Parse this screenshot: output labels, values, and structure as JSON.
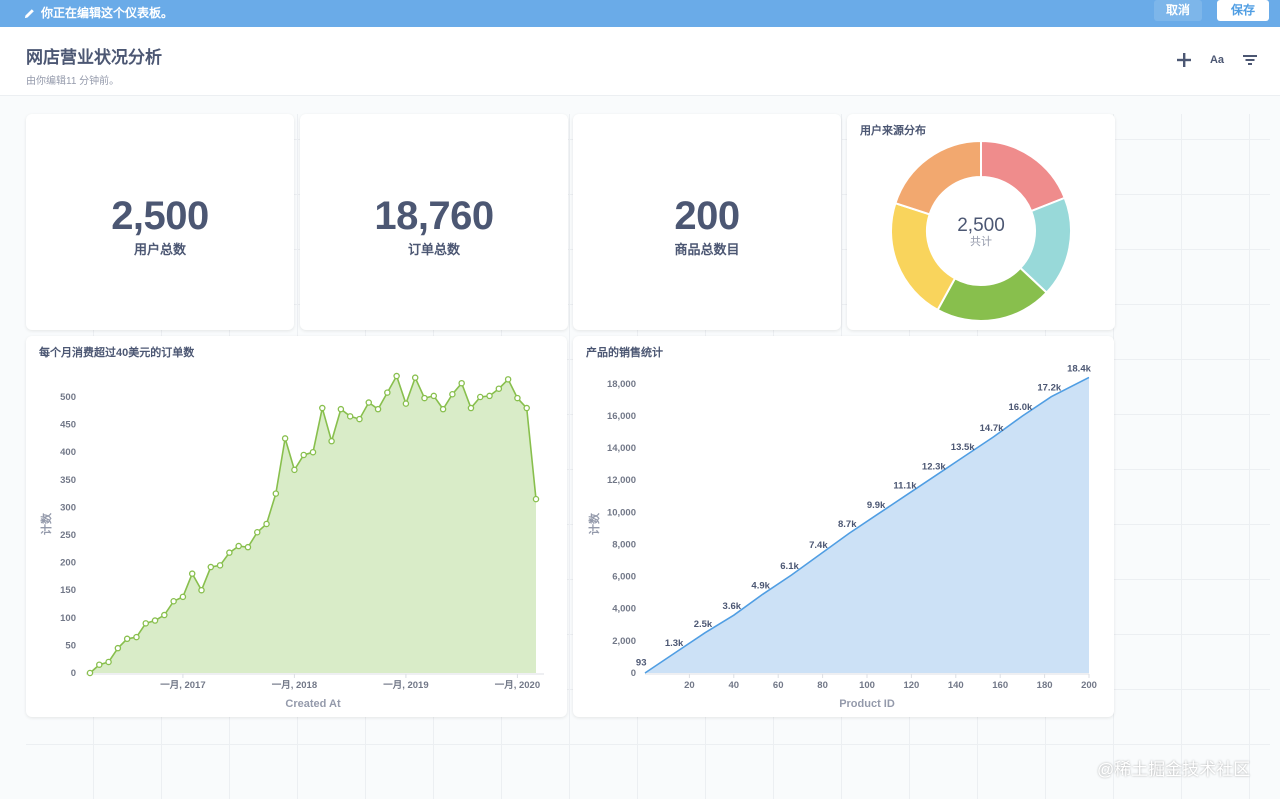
{
  "edit_bar": {
    "message": "你正在编辑这个仪表板。",
    "cancel_label": "取消",
    "save_label": "保存",
    "color": "#6aabe8"
  },
  "header": {
    "title": "网店营业状况分析",
    "subtitle": "由你编辑11 分钟前。",
    "icons": [
      "plus-icon",
      "text-card-icon",
      "filter-icon"
    ],
    "text_card_label": "Aa"
  },
  "scalars": [
    {
      "value": "2,500",
      "label": "用户总数"
    },
    {
      "value": "18,760",
      "label": "订单总数"
    },
    {
      "value": "200",
      "label": "商品总数目"
    }
  ],
  "donut": {
    "title": "用户来源分布",
    "total": "2,500",
    "total_label": "共计",
    "colors": [
      "#ef8c8c",
      "#98d9d9",
      "#88bf4d",
      "#f9d45c",
      "#f2a86f"
    ]
  },
  "line_card": {
    "title": "每个月消费超过40美元的订单数"
  },
  "area_card": {
    "title": "产品的销售统计"
  },
  "chart_data": [
    {
      "type": "pie",
      "values": [
        0.19,
        0.18,
        0.21,
        0.22,
        0.2
      ],
      "colors": [
        "#ef8c8c",
        "#98d9d9",
        "#88bf4d",
        "#f9d45c",
        "#f2a86f"
      ],
      "center_value": "2,500",
      "center_label": "共计",
      "title": "用户来源分布"
    },
    {
      "type": "area",
      "title": "每个月消费超过40美元的订单数",
      "xlabel": "Created At",
      "ylabel": "计数",
      "ylim": [
        0,
        500
      ],
      "yticks": [
        0,
        50,
        100,
        150,
        200,
        250,
        300,
        350,
        400,
        450,
        500
      ],
      "xticks": [
        {
          "index": 10,
          "label": "一月, 2017"
        },
        {
          "index": 22,
          "label": "一月, 2018"
        },
        {
          "index": 34,
          "label": "一月, 2019"
        },
        {
          "index": 46,
          "label": "一月, 2020"
        }
      ],
      "color": "#88bf4d",
      "fill": "#d9ecc8",
      "values": [
        0,
        15,
        20,
        45,
        62,
        65,
        90,
        95,
        105,
        130,
        138,
        180,
        150,
        192,
        195,
        218,
        230,
        228,
        255,
        270,
        325,
        425,
        368,
        395,
        400,
        480,
        420,
        478,
        465,
        460,
        490,
        478,
        508,
        538,
        488,
        535,
        498,
        502,
        478,
        505,
        525,
        480,
        500,
        502,
        515,
        532,
        498,
        480,
        315
      ]
    },
    {
      "type": "area",
      "title": "产品的销售统计",
      "xlabel": "Product ID",
      "ylabel": "计数",
      "xlim": [
        0,
        200
      ],
      "ylim": [
        0,
        18800
      ],
      "xticks": [
        20,
        40,
        60,
        80,
        100,
        120,
        140,
        160,
        180,
        200
      ],
      "yticks": [
        {
          "value": 0,
          "label": "0"
        },
        {
          "value": 2000,
          "label": "2,000"
        },
        {
          "value": 4000,
          "label": "4,000"
        },
        {
          "value": 6000,
          "label": "6,000"
        },
        {
          "value": 8000,
          "label": "8,000"
        },
        {
          "value": 10000,
          "label": "10,000"
        },
        {
          "value": 12000,
          "label": "12,000"
        },
        {
          "value": 14000,
          "label": "14,000"
        },
        {
          "value": 16000,
          "label": "16,000"
        },
        {
          "value": 18000,
          "label": "18,000"
        }
      ],
      "color": "#509ee3",
      "fill": "#cce1f6",
      "points": [
        {
          "x": 1,
          "y": 93,
          "label": "93"
        },
        {
          "x": 14,
          "y": 1300,
          "label": "1.3k"
        },
        {
          "x": 27,
          "y": 2500,
          "label": "2.5k"
        },
        {
          "x": 40,
          "y": 3600,
          "label": "3.6k"
        },
        {
          "x": 53,
          "y": 4900,
          "label": "4.9k"
        },
        {
          "x": 66,
          "y": 6100,
          "label": "6.1k"
        },
        {
          "x": 79,
          "y": 7400,
          "label": "7.4k"
        },
        {
          "x": 92,
          "y": 8700,
          "label": "8.7k"
        },
        {
          "x": 105,
          "y": 9900,
          "label": "9.9k"
        },
        {
          "x": 118,
          "y": 11100,
          "label": "11.1k"
        },
        {
          "x": 131,
          "y": 12300,
          "label": "12.3k"
        },
        {
          "x": 144,
          "y": 13500,
          "label": "13.5k"
        },
        {
          "x": 157,
          "y": 14700,
          "label": "14.7k"
        },
        {
          "x": 170,
          "y": 16000,
          "label": "16.0k"
        },
        {
          "x": 183,
          "y": 17200,
          "label": "17.2k"
        },
        {
          "x": 200,
          "y": 18400,
          "label": "18.4k"
        }
      ]
    }
  ],
  "watermark": "@稀土掘金技术社区"
}
